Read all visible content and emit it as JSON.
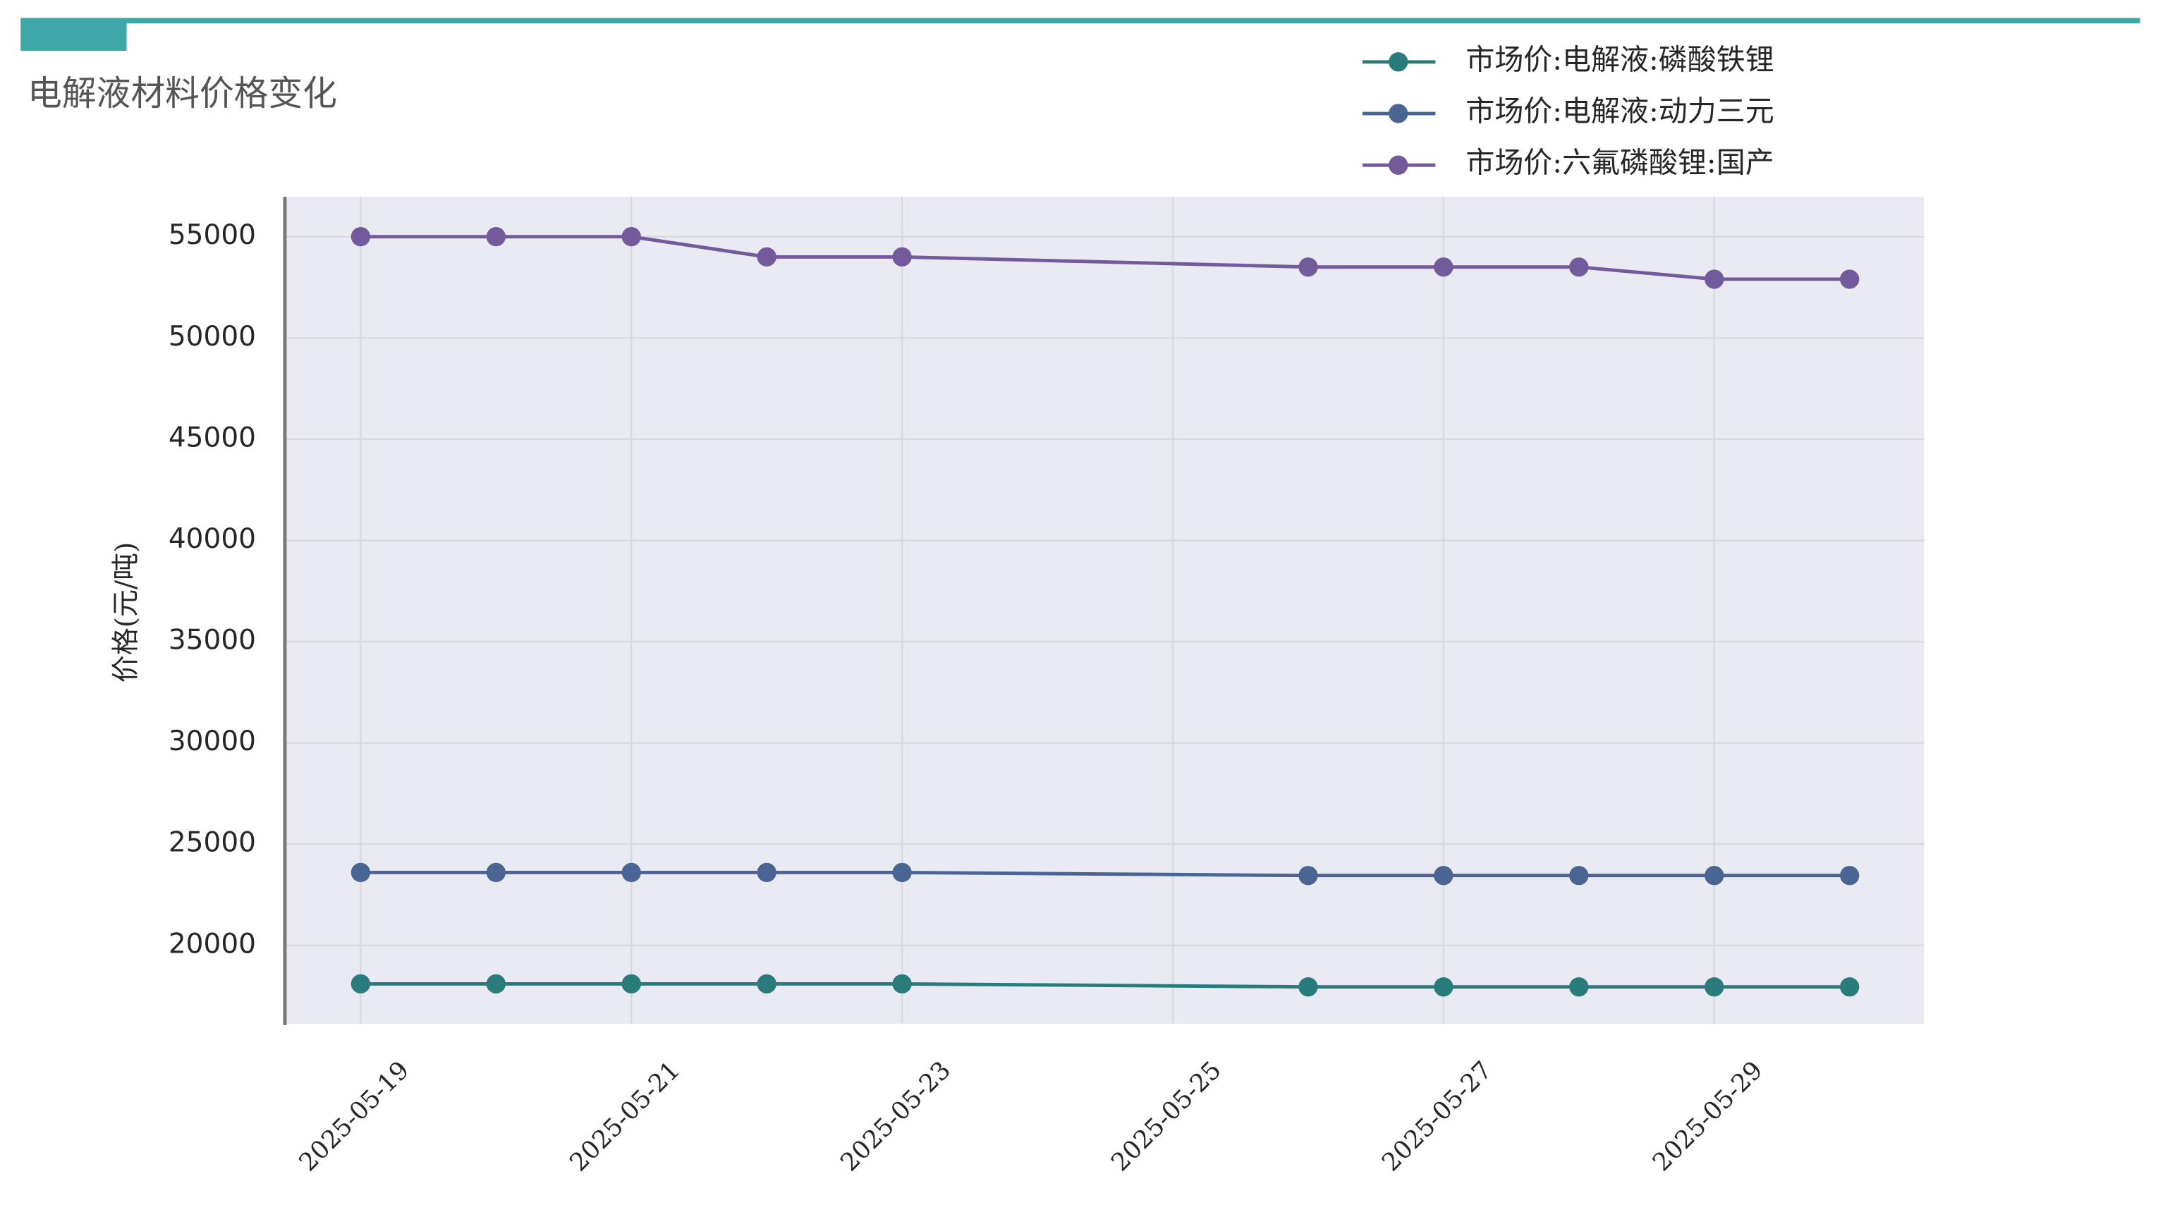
{
  "header": {
    "title": "电解液材料价格变化"
  },
  "chart_data": {
    "type": "line",
    "ylabel": "价格(元/吨)",
    "x": [
      "2025-05-19",
      "2025-05-20",
      "2025-05-21",
      "2025-05-22",
      "2025-05-23",
      "2025-05-26",
      "2025-05-27",
      "2025-05-28",
      "2025-05-29",
      "2025-05-30"
    ],
    "series": [
      {
        "name": "市场价:电解液:磷酸铁锂",
        "color": "#2a7b7b",
        "values": [
          18100,
          18100,
          18100,
          18100,
          18100,
          17950,
          17950,
          17950,
          17950,
          17950
        ]
      },
      {
        "name": "市场价:电解液:动力三元",
        "color": "#4a6494",
        "values": [
          23600,
          23600,
          23600,
          23600,
          23600,
          23450,
          23450,
          23450,
          23450,
          23450
        ]
      },
      {
        "name": "市场价:六氟磷酸锂:国产",
        "color": "#735a9c",
        "values": [
          55000,
          55000,
          55000,
          54000,
          54000,
          53500,
          53500,
          53500,
          52900,
          52900
        ]
      }
    ],
    "xlim": [
      "2025-05-18T10:34",
      "2025-05-30T13:12"
    ],
    "xticks": [
      "2025-05-19",
      "2025-05-21",
      "2025-05-23",
      "2025-05-25",
      "2025-05-27",
      "2025-05-29"
    ],
    "ylim": [
      16130,
      56970
    ],
    "yticks": [
      20000,
      25000,
      30000,
      35000,
      40000,
      45000,
      50000,
      55000
    ],
    "grid": true,
    "legend": "top-right"
  }
}
